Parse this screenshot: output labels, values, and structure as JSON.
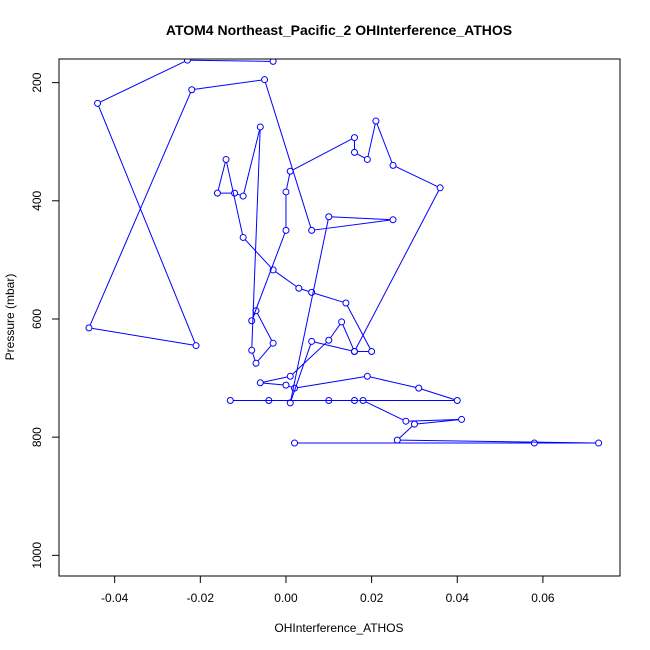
{
  "chart_data": {
    "type": "line",
    "title": "ATOM4 Northeast_Pacific_2 OHInterference_ATHOS",
    "xlabel": "OHInterference_ATHOS",
    "ylabel": "Pressure (mbar)",
    "xlim": [
      -0.053,
      0.078
    ],
    "ylim": [
      1035,
      160
    ],
    "y_inverted": true,
    "x_ticks": [
      -0.04,
      -0.02,
      0.0,
      0.02,
      0.04,
      0.06
    ],
    "x_tick_labels": [
      "-0.04",
      "-0.02",
      "0.00",
      "0.02",
      "0.04",
      "0.06"
    ],
    "y_ticks": [
      200,
      400,
      600,
      800,
      1000
    ],
    "y_tick_labels": [
      "200",
      "400",
      "600",
      "800",
      "1000"
    ],
    "grid": false,
    "series_color": "#0000ff",
    "marker": "open-circle",
    "series": [
      {
        "points": [
          [
            0.002,
            810
          ],
          [
            0.058,
            810
          ],
          [
            0.073,
            810
          ],
          [
            0.026,
            805
          ],
          [
            0.03,
            778
          ],
          [
            0.041,
            770
          ],
          [
            0.028,
            773
          ],
          [
            0.018,
            738
          ],
          [
            0.016,
            738
          ],
          [
            -0.013,
            738
          ],
          [
            -0.004,
            738
          ],
          [
            0.01,
            738
          ],
          [
            0.04,
            738
          ],
          [
            0.031,
            717
          ],
          [
            0.019,
            697
          ],
          [
            0.002,
            717
          ],
          [
            0.0,
            712
          ],
          [
            -0.006,
            708
          ],
          [
            0.001,
            697
          ],
          [
            0.01,
            636
          ],
          [
            0.013,
            605
          ],
          [
            0.016,
            655
          ],
          [
            0.02,
            655
          ],
          [
            0.014,
            573
          ],
          [
            0.006,
            555
          ],
          [
            0.003,
            548
          ],
          [
            -0.003,
            517
          ],
          [
            -0.01,
            462
          ],
          [
            -0.014,
            330
          ],
          [
            -0.016,
            387
          ],
          [
            -0.012,
            387
          ],
          [
            -0.01,
            392
          ],
          [
            -0.006,
            275
          ],
          [
            -0.008,
            653
          ],
          [
            -0.007,
            675
          ],
          [
            -0.003,
            641
          ],
          [
            -0.007,
            586
          ],
          [
            -0.008,
            603
          ],
          [
            0.0,
            450
          ],
          [
            0.0,
            385
          ],
          [
            0.001,
            350
          ],
          [
            0.016,
            293
          ],
          [
            0.016,
            318
          ],
          [
            0.019,
            330
          ],
          [
            0.021,
            265
          ],
          [
            0.025,
            340
          ],
          [
            0.036,
            378
          ],
          [
            0.016,
            655
          ],
          [
            0.006,
            638
          ],
          [
            0.001,
            742
          ],
          [
            0.01,
            427
          ],
          [
            0.025,
            432
          ],
          [
            0.006,
            450
          ],
          [
            -0.005,
            195
          ],
          [
            -0.022,
            212
          ],
          [
            -0.046,
            615
          ],
          [
            -0.021,
            645
          ],
          [
            -0.044,
            235
          ],
          [
            -0.023,
            162
          ],
          [
            -0.003,
            164
          ]
        ]
      }
    ]
  }
}
